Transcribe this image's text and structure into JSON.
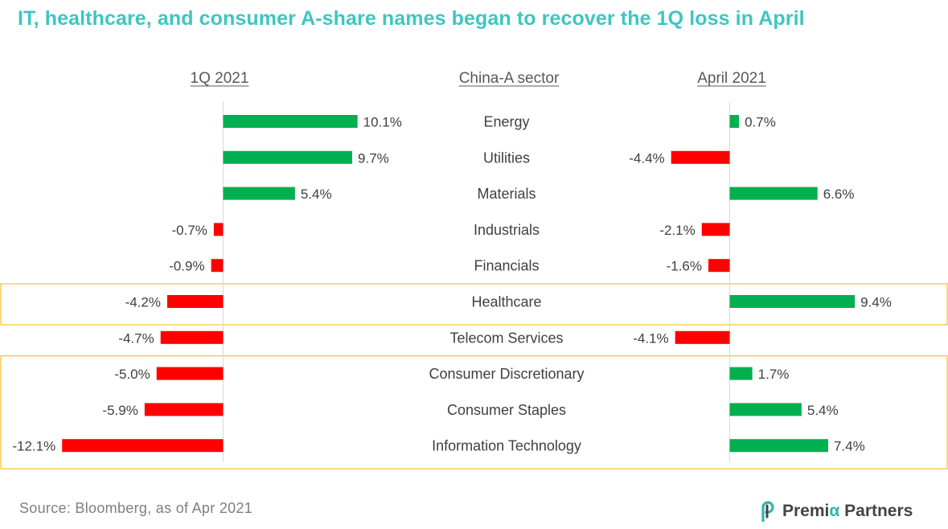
{
  "title": "IT, healthcare, and consumer A-share names began to recover the 1Q loss in April",
  "source": "Source: Bloomberg, as of Apr 2021",
  "logo": {
    "icon": "premia-p-logo-icon",
    "text_before": "Premi",
    "alpha": "α",
    "text_after": " Partners"
  },
  "colors": {
    "title": "#3EC6C0",
    "positive": "#00B050",
    "negative": "#FF0000",
    "highlight_box": "#F2C12E"
  },
  "chart_data": {
    "type": "bar",
    "orientation": "horizontal",
    "title": "IT, healthcare, and consumer A-share names began to recover the 1Q loss in April",
    "category_header": "China-A sector",
    "categories": [
      "Energy",
      "Utilities",
      "Materials",
      "Industrials",
      "Financials",
      "Healthcare",
      "Telecom Services",
      "Consumer Discretionary",
      "Consumer Staples",
      "Information Technology"
    ],
    "series": [
      {
        "name": "1Q 2021",
        "values": [
          10.1,
          9.7,
          5.4,
          -0.7,
          -0.9,
          -4.2,
          -4.7,
          -5.0,
          -5.9,
          -12.1
        ],
        "labels": [
          "10.1%",
          "9.7%",
          "5.4%",
          "-0.7%",
          "-0.9%",
          "-4.2%",
          "-4.7%",
          "-5.0%",
          "-5.9%",
          "-12.1%"
        ]
      },
      {
        "name": "April 2021",
        "values": [
          0.7,
          -4.4,
          6.6,
          -2.1,
          -1.6,
          9.4,
          -4.1,
          1.7,
          5.4,
          7.4
        ],
        "labels": [
          "0.7%",
          "-4.4%",
          "6.6%",
          "-2.1%",
          "-1.6%",
          "9.4%",
          "-4.1%",
          "1.7%",
          "5.4%",
          "7.4%"
        ]
      }
    ],
    "unit": "%",
    "highlight_groups": [
      [
        "Healthcare"
      ],
      [
        "Consumer Discretionary",
        "Consumer Staples",
        "Information Technology"
      ]
    ],
    "grid": false,
    "legend": "none"
  }
}
